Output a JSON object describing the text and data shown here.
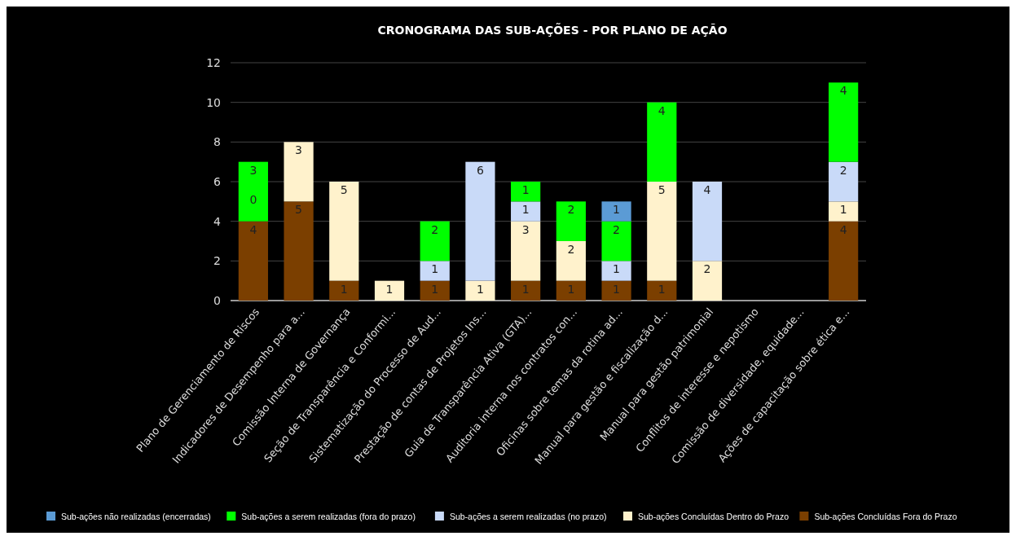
{
  "chart_data": {
    "type": "bar",
    "stacked": true,
    "title": "CRONOGRAMA DAS SUB-AÇÕES - POR PLANO DE AÇÃO",
    "categories": [
      "Plano de Gerenciamento de Riscos",
      "Indicadores de Desempenho para a...",
      "Comissão Interna de Governança",
      "Seção de Transparência e Conformi...",
      "Sistematização do Processo de Aud...",
      "Prestação de contas de Projetos Ins...",
      "Guia de Transparência Ativa (GTA)...",
      "Auditoria interna nos contratos con...",
      "Oficinas sobre temas da rotina ad...",
      "Manual para gestão e fiscalização d...",
      "Manual para gestão patrimonial",
      "Conflitos de interesse e nepotismo",
      "Comissão de diversidade, equidade...",
      "Ações de capacitação sobre ética e..."
    ],
    "series": [
      {
        "name": "Sub-ações Concluídas Fora do Prazo",
        "color": "#7b3f00",
        "values": [
          4,
          5,
          1,
          null,
          1,
          null,
          1,
          1,
          1,
          1,
          null,
          null,
          null,
          4
        ]
      },
      {
        "name": "Sub-ações Concluídas Dentro do Prazo",
        "color": "#fff2cc",
        "values": [
          null,
          3,
          5,
          1,
          null,
          1,
          3,
          2,
          null,
          5,
          2,
          null,
          null,
          1
        ]
      },
      {
        "name": "Sub-ações a serem realizadas (no prazo)",
        "color": "#c9daf8",
        "values": [
          0,
          null,
          null,
          null,
          1,
          6,
          1,
          null,
          1,
          null,
          4,
          null,
          null,
          2
        ]
      },
      {
        "name": "Sub-ações a serem realizadas (fora do prazo)",
        "color": "#00ff00",
        "values": [
          3,
          null,
          null,
          null,
          2,
          null,
          1,
          2,
          2,
          4,
          null,
          null,
          null,
          4
        ]
      },
      {
        "name": "Sub-ações não realizadas (encerradas)",
        "color": "#5b9bd5",
        "values": [
          null,
          null,
          null,
          null,
          null,
          null,
          null,
          null,
          1,
          null,
          null,
          null,
          null,
          null
        ]
      }
    ],
    "ylim": [
      0,
      12
    ],
    "yticks": [
      0,
      2,
      4,
      6,
      8,
      10,
      12
    ],
    "grid": "y",
    "legend": "bottom",
    "data_labels": true
  }
}
